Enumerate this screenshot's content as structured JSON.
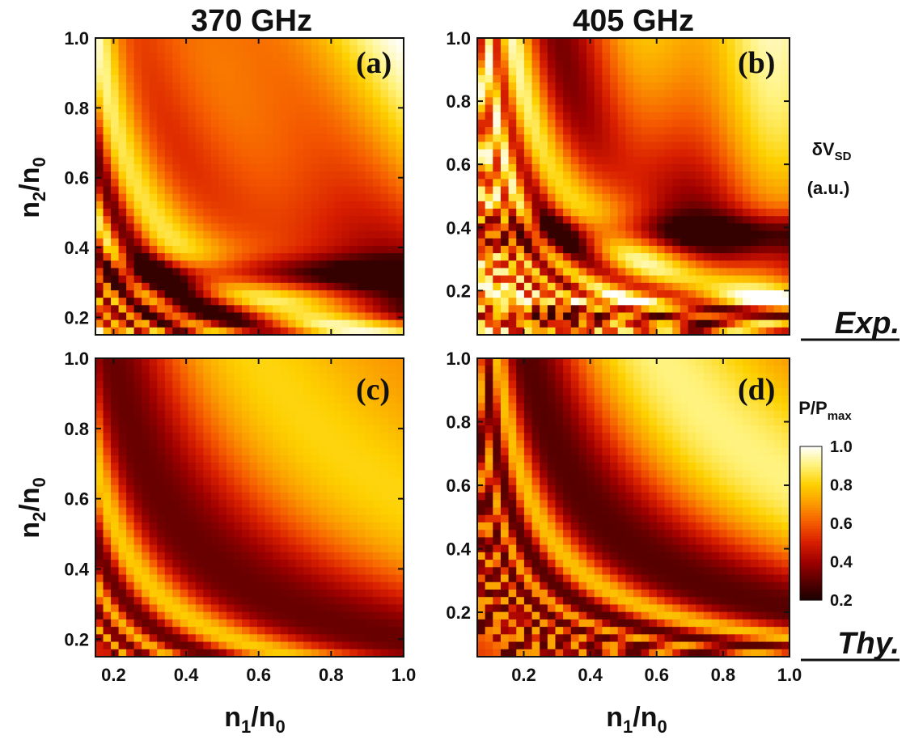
{
  "figure": {
    "column_titles": [
      "370 GHz",
      "405 GHz"
    ],
    "row_labels": [
      "Exp.",
      "Thy."
    ],
    "exp_colorbar_label": {
      "main": "δV",
      "sub": "SD",
      "unit": "(a.u.)"
    },
    "thy_colorbar_label": {
      "main": "P/P",
      "sub": "max"
    },
    "xlabel": {
      "main": "n",
      "sub1": "1",
      "mid": "/n",
      "sub2": "0"
    },
    "ylabel": {
      "main": "n",
      "sub1": "2",
      "mid": "/n",
      "sub2": "0"
    },
    "colormap": [
      "#1a0000",
      "#5a0000",
      "#a00000",
      "#d81e00",
      "#f55a00",
      "#fb9a00",
      "#fdd000",
      "#fff27a",
      "#ffffff"
    ]
  },
  "chart_data": [
    {
      "id": "a",
      "label": "(a)",
      "type": "heatmap",
      "frequency": "370 GHz",
      "kind": "Exp.",
      "xlim": [
        0.15,
        1.0
      ],
      "ylim": [
        0.15,
        1.0
      ],
      "xticks": [
        "0.2",
        "0.4",
        "0.6",
        "0.8",
        "1.0"
      ],
      "yticks": [
        "0.2",
        "0.4",
        "0.6",
        "0.8",
        "1.0"
      ],
      "xtick_values": [
        0.2,
        0.4,
        0.6,
        0.8,
        1.0
      ],
      "ytick_values": [
        0.2,
        0.4,
        0.6,
        0.8,
        1.0
      ],
      "show_xticklabels": false
    },
    {
      "id": "b",
      "label": "(b)",
      "type": "heatmap",
      "frequency": "405 GHz",
      "kind": "Exp.",
      "xlim": [
        0.06,
        1.0
      ],
      "ylim": [
        0.06,
        1.0
      ],
      "xticks": [
        "0.2",
        "0.4",
        "0.6",
        "0.8",
        "1.0"
      ],
      "yticks": [
        "0.2",
        "0.4",
        "0.6",
        "0.8",
        "1.0"
      ],
      "xtick_values": [
        0.2,
        0.4,
        0.6,
        0.8,
        1.0
      ],
      "ytick_values": [
        0.2,
        0.4,
        0.6,
        0.8,
        1.0
      ],
      "show_xticklabels": false
    },
    {
      "id": "c",
      "label": "(c)",
      "type": "heatmap",
      "frequency": "370 GHz",
      "kind": "Thy.",
      "xlim": [
        0.15,
        1.0
      ],
      "ylim": [
        0.15,
        1.0
      ],
      "xticks": [
        "0.2",
        "0.4",
        "0.6",
        "0.8",
        "1.0"
      ],
      "yticks": [
        "0.2",
        "0.4",
        "0.6",
        "0.8",
        "1.0"
      ],
      "xtick_values": [
        0.2,
        0.4,
        0.6,
        0.8,
        1.0
      ],
      "ytick_values": [
        0.2,
        0.4,
        0.6,
        0.8,
        1.0
      ],
      "show_xticklabels": true
    },
    {
      "id": "d",
      "label": "(d)",
      "type": "heatmap",
      "frequency": "405 GHz",
      "kind": "Thy.",
      "xlim": [
        0.06,
        1.0
      ],
      "ylim": [
        0.06,
        1.0
      ],
      "xticks": [
        "0.2",
        "0.4",
        "0.6",
        "0.8",
        "1.0"
      ],
      "yticks": [
        "0.2",
        "0.4",
        "0.6",
        "0.8",
        "1.0"
      ],
      "xtick_values": [
        0.2,
        0.4,
        0.6,
        0.8,
        1.0
      ],
      "ytick_values": [
        0.2,
        0.4,
        0.6,
        0.8,
        1.0
      ],
      "show_xticklabels": true
    },
    {
      "id": "colorbar",
      "type": "colorbar",
      "range": [
        0.2,
        1.0
      ],
      "ticks": [
        "0.2",
        "0.4",
        "0.6",
        "0.8",
        "1.0"
      ],
      "tick_values": [
        0.2,
        0.4,
        0.6,
        0.8,
        1.0
      ]
    }
  ]
}
